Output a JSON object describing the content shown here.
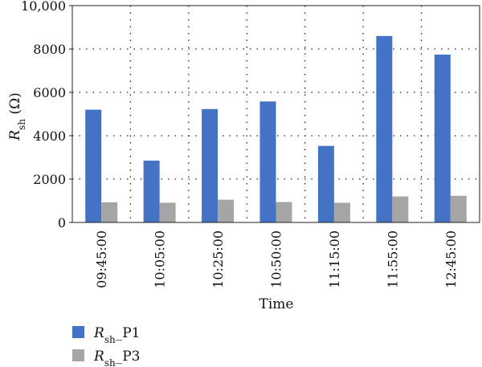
{
  "chart_data": {
    "type": "bar",
    "categories": [
      "09:45:00",
      "10:05:00",
      "10:25:00",
      "10:50:00",
      "11:15:00",
      "11:55:00",
      "12:45:00"
    ],
    "series": [
      {
        "name_main": "R",
        "name_sub": "sh",
        "name_suffix": "_P1",
        "color": "#4472c4",
        "values": [
          5200,
          2850,
          5230,
          5580,
          3530,
          8600,
          7740
        ]
      },
      {
        "name_main": "R",
        "name_sub": "sh",
        "name_suffix": "_P3",
        "color": "#a5a5a5",
        "values": [
          930,
          910,
          1050,
          940,
          910,
          1200,
          1230
        ]
      }
    ],
    "ylim": [
      0,
      10000
    ],
    "yticks": [
      0,
      2000,
      4000,
      6000,
      8000,
      10000
    ],
    "ytick_labels": [
      "0",
      "2000",
      "4000",
      "6000",
      "8000",
      "10,000"
    ],
    "xlabel": "Time",
    "ylabel_main": "R",
    "ylabel_sub": "sh",
    "ylabel_suffix": " (Ω)",
    "grid": "dotted-major",
    "legend_position": "bottom-left"
  }
}
